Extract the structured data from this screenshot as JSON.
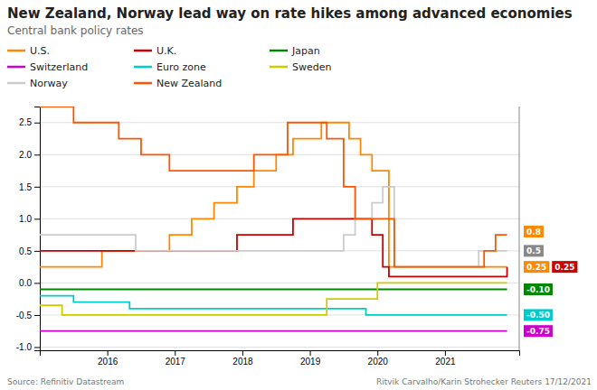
{
  "chart_data": {
    "type": "step",
    "title": "New Zealand, Norway lead way on rate hikes among advanced economies",
    "subtitle": "Central bank policy rates",
    "annotations": [
      "Source: Refinitiv Datastream",
      "Ritvik Carvalho/Karin Strohecker Reuters 17/12/2021"
    ],
    "xlim": [
      2015.0,
      2022.1
    ],
    "xticks": [
      2016,
      2017,
      2018,
      2019,
      2020,
      2021
    ],
    "ylim": [
      -1.05,
      2.75
    ],
    "yticks": [
      {
        "value": -1.0,
        "label": "-1.0"
      },
      -0.5,
      {
        "value": 0.0,
        "label": "0.0"
      },
      0.5,
      {
        "value": 1.0,
        "label": "1.0"
      },
      1.5,
      {
        "value": 2.0,
        "label": "2.0"
      },
      2.5
    ],
    "grid": true,
    "legend": "top-left",
    "series": [
      {
        "name": "U.S.",
        "color": "#ff8800",
        "x": [
          2015.0,
          2015.92,
          2016.92,
          2017.25,
          2017.58,
          2017.92,
          2018.17,
          2018.5,
          2018.75,
          2019.17,
          2019.58,
          2019.75,
          2019.92,
          2020.17,
          2021.92
        ],
        "values": [
          0.25,
          0.5,
          0.75,
          1.0,
          1.25,
          1.5,
          1.75,
          2.0,
          2.25,
          2.5,
          2.25,
          2.0,
          1.75,
          0.25,
          0.25
        ]
      },
      {
        "name": "U.K.",
        "color": "#cc0000",
        "x": [
          2015.0,
          2017.92,
          2017.92,
          2018.75,
          2018.75,
          2019.92,
          2019.92,
          2020.08,
          2020.17,
          2020.33,
          2021.92
        ],
        "values": [
          0.5,
          0.5,
          0.75,
          0.75,
          1.0,
          1.0,
          0.75,
          0.25,
          0.1,
          0.1,
          0.25
        ]
      },
      {
        "name": "Japan",
        "color": "#008800",
        "x": [
          2015.0,
          2021.92
        ],
        "values": [
          -0.1,
          -0.1
        ]
      },
      {
        "name": "Switzerland",
        "color": "#cc00cc",
        "x": [
          2015.0,
          2021.92
        ],
        "values": [
          -0.75,
          -0.75
        ]
      },
      {
        "name": "Euro zone",
        "color": "#00cccc",
        "x": [
          2015.0,
          2015.5,
          2015.5,
          2016.33,
          2016.33,
          2019.83,
          2019.83,
          2021.92
        ],
        "values": [
          -0.2,
          -0.2,
          -0.3,
          -0.3,
          -0.4,
          -0.4,
          -0.5,
          -0.5
        ]
      },
      {
        "name": "Sweden",
        "color": "#cccc00",
        "x": [
          2015.0,
          2015.33,
          2015.33,
          2019.25,
          2019.25,
          2020.0,
          2020.0,
          2021.92
        ],
        "values": [
          -0.35,
          -0.35,
          -0.5,
          -0.5,
          -0.25,
          -0.25,
          0.0,
          0.0
        ]
      },
      {
        "name": "Norway",
        "color": "#cccccc",
        "x": [
          2015.0,
          2016.42,
          2016.42,
          2019.5,
          2019.5,
          2019.67,
          2019.67,
          2019.92,
          2019.92,
          2020.08,
          2020.08,
          2020.25,
          2020.25,
          2021.5,
          2021.5,
          2021.75,
          2021.92
        ],
        "values": [
          0.75,
          0.75,
          0.5,
          0.5,
          0.75,
          0.75,
          1.0,
          1.0,
          1.25,
          1.25,
          1.5,
          1.5,
          0.25,
          0.25,
          0.5,
          0.5,
          0.5
        ]
      },
      {
        "name": "New Zealand",
        "color": "#ff5500",
        "x": [
          2015.0,
          2015.5,
          2015.5,
          2016.17,
          2016.17,
          2016.5,
          2016.5,
          2016.92,
          2016.92,
          2018.17,
          2018.17,
          2018.67,
          2018.67,
          2019.25,
          2019.25,
          2019.5,
          2019.5,
          2019.67,
          2019.67,
          2020.25,
          2020.25,
          2021.58,
          2021.58,
          2021.75,
          2021.75,
          2021.92
        ],
        "values": [
          2.75,
          2.75,
          2.5,
          2.5,
          2.25,
          2.25,
          2.0,
          2.0,
          1.75,
          1.75,
          2.0,
          2.0,
          2.5,
          2.5,
          2.25,
          2.25,
          1.5,
          1.5,
          1.0,
          1.0,
          0.25,
          0.25,
          0.5,
          0.5,
          0.75,
          0.75
        ]
      }
    ],
    "end_labels": [
      {
        "value": 0.8,
        "label": "0.8",
        "color": "#ff8800"
      },
      {
        "value": 0.5,
        "label": "0.5",
        "color": "#888888"
      },
      {
        "value": 0.25,
        "label": "0.25",
        "color": "#ff8800"
      },
      {
        "value": 0.25,
        "label": "0.25",
        "color": "#cc0000"
      },
      {
        "value": -0.1,
        "label": "-0.10",
        "color": "#008800"
      },
      {
        "value": -0.5,
        "label": "-0.50",
        "color": "#00cccc"
      },
      {
        "value": -0.75,
        "label": "-0.75",
        "color": "#cc00cc"
      }
    ]
  }
}
